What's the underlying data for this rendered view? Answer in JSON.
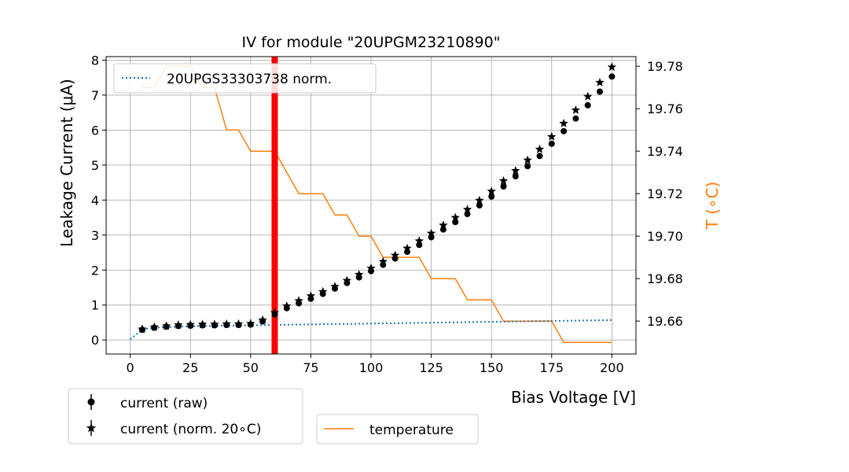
{
  "chart_data": {
    "type": "scatter",
    "title": "IV for module \"20UPGM23210890\"",
    "xlabel": "Bias Voltage [V]",
    "ylabel": "Leakage Current (μA)",
    "y2label": "T (∘C)",
    "xlim": [
      -10,
      210
    ],
    "ylim": [
      -0.4,
      8.1
    ],
    "y2lim": [
      19.6445,
      19.7845
    ],
    "xticks": [
      "0",
      "25",
      "50",
      "75",
      "100",
      "125",
      "150",
      "175",
      "200"
    ],
    "yticks": [
      "0",
      "1",
      "2",
      "3",
      "4",
      "5",
      "6",
      "7",
      "8"
    ],
    "y2ticks": [
      "19.66",
      "19.68",
      "19.70",
      "19.72",
      "19.74",
      "19.76",
      "19.78"
    ],
    "grid": true,
    "vline_x": 60,
    "vline_color": "#ff0000",
    "temp_color": "#ff7f0e",
    "ref_color": "#1f77b4",
    "legend_top": {
      "position": "top-left",
      "entries": [
        {
          "label": "20UPGS33303738 norm."
        }
      ]
    },
    "legend_bottom_left": {
      "position": "below-left",
      "entries": [
        {
          "label": "current (raw)"
        },
        {
          "label": "current (norm. 20∘C)"
        }
      ]
    },
    "legend_bottom_right": {
      "position": "below-center",
      "entries": [
        {
          "label": "temperature"
        }
      ]
    },
    "series": [
      {
        "name": "current (raw)",
        "x": [
          5,
          10,
          15,
          20,
          25,
          30,
          35,
          40,
          45,
          50,
          55,
          60,
          65,
          70,
          75,
          80,
          85,
          90,
          95,
          100,
          105,
          110,
          115,
          120,
          125,
          130,
          135,
          140,
          145,
          150,
          155,
          160,
          165,
          170,
          175,
          180,
          185,
          190,
          195,
          200
        ],
        "values": [
          0.29,
          0.35,
          0.38,
          0.4,
          0.41,
          0.42,
          0.42,
          0.43,
          0.43,
          0.44,
          0.53,
          0.73,
          0.91,
          1.05,
          1.18,
          1.32,
          1.47,
          1.63,
          1.79,
          1.97,
          2.15,
          2.33,
          2.52,
          2.72,
          2.94,
          3.16,
          3.37,
          3.6,
          3.85,
          4.1,
          4.39,
          4.68,
          4.97,
          5.26,
          5.61,
          5.97,
          6.33,
          6.71,
          7.1,
          7.53
        ]
      },
      {
        "name": "current (norm. 20∘C)",
        "x": [
          5,
          10,
          15,
          20,
          25,
          30,
          35,
          40,
          45,
          50,
          55,
          60,
          65,
          70,
          75,
          80,
          85,
          90,
          95,
          100,
          105,
          110,
          115,
          120,
          125,
          130,
          135,
          140,
          145,
          150,
          155,
          160,
          165,
          170,
          175,
          180,
          185,
          190,
          195,
          200
        ],
        "values": [
          0.31,
          0.37,
          0.4,
          0.43,
          0.44,
          0.45,
          0.45,
          0.46,
          0.46,
          0.47,
          0.57,
          0.78,
          0.97,
          1.12,
          1.26,
          1.38,
          1.53,
          1.7,
          1.87,
          2.05,
          2.24,
          2.42,
          2.62,
          2.83,
          3.05,
          3.28,
          3.5,
          3.73,
          3.99,
          4.25,
          4.55,
          4.84,
          5.14,
          5.45,
          5.81,
          6.19,
          6.57,
          6.96,
          7.36,
          7.8
        ]
      },
      {
        "name": "20UPGS33303738 norm.",
        "x": [
          0,
          5,
          10,
          20,
          30,
          40,
          50,
          60,
          70,
          80,
          90,
          100,
          110,
          120,
          130,
          140,
          150,
          160,
          170,
          180,
          190,
          200
        ],
        "values": [
          0.02,
          0.3,
          0.35,
          0.38,
          0.4,
          0.41,
          0.42,
          0.43,
          0.44,
          0.45,
          0.46,
          0.47,
          0.48,
          0.49,
          0.5,
          0.51,
          0.52,
          0.53,
          0.54,
          0.55,
          0.56,
          0.57
        ]
      },
      {
        "name": "temperature",
        "x": [
          5,
          10,
          15,
          20,
          25,
          30,
          35,
          40,
          45,
          50,
          55,
          60,
          65,
          70,
          75,
          80,
          85,
          90,
          95,
          100,
          105,
          110,
          115,
          120,
          125,
          130,
          135,
          140,
          145,
          150,
          155,
          160,
          165,
          170,
          175,
          180,
          185,
          190,
          195,
          200
        ],
        "values": [
          19.77,
          19.77,
          19.78,
          19.78,
          19.78,
          19.77,
          19.77,
          19.75,
          19.75,
          19.74,
          19.74,
          19.74,
          19.73,
          19.72,
          19.72,
          19.72,
          19.71,
          19.71,
          19.7,
          19.7,
          19.69,
          19.69,
          19.69,
          19.69,
          19.68,
          19.68,
          19.68,
          19.67,
          19.67,
          19.67,
          19.66,
          19.66,
          19.66,
          19.66,
          19.66,
          19.65,
          19.65,
          19.65,
          19.65,
          19.65
        ]
      }
    ]
  }
}
